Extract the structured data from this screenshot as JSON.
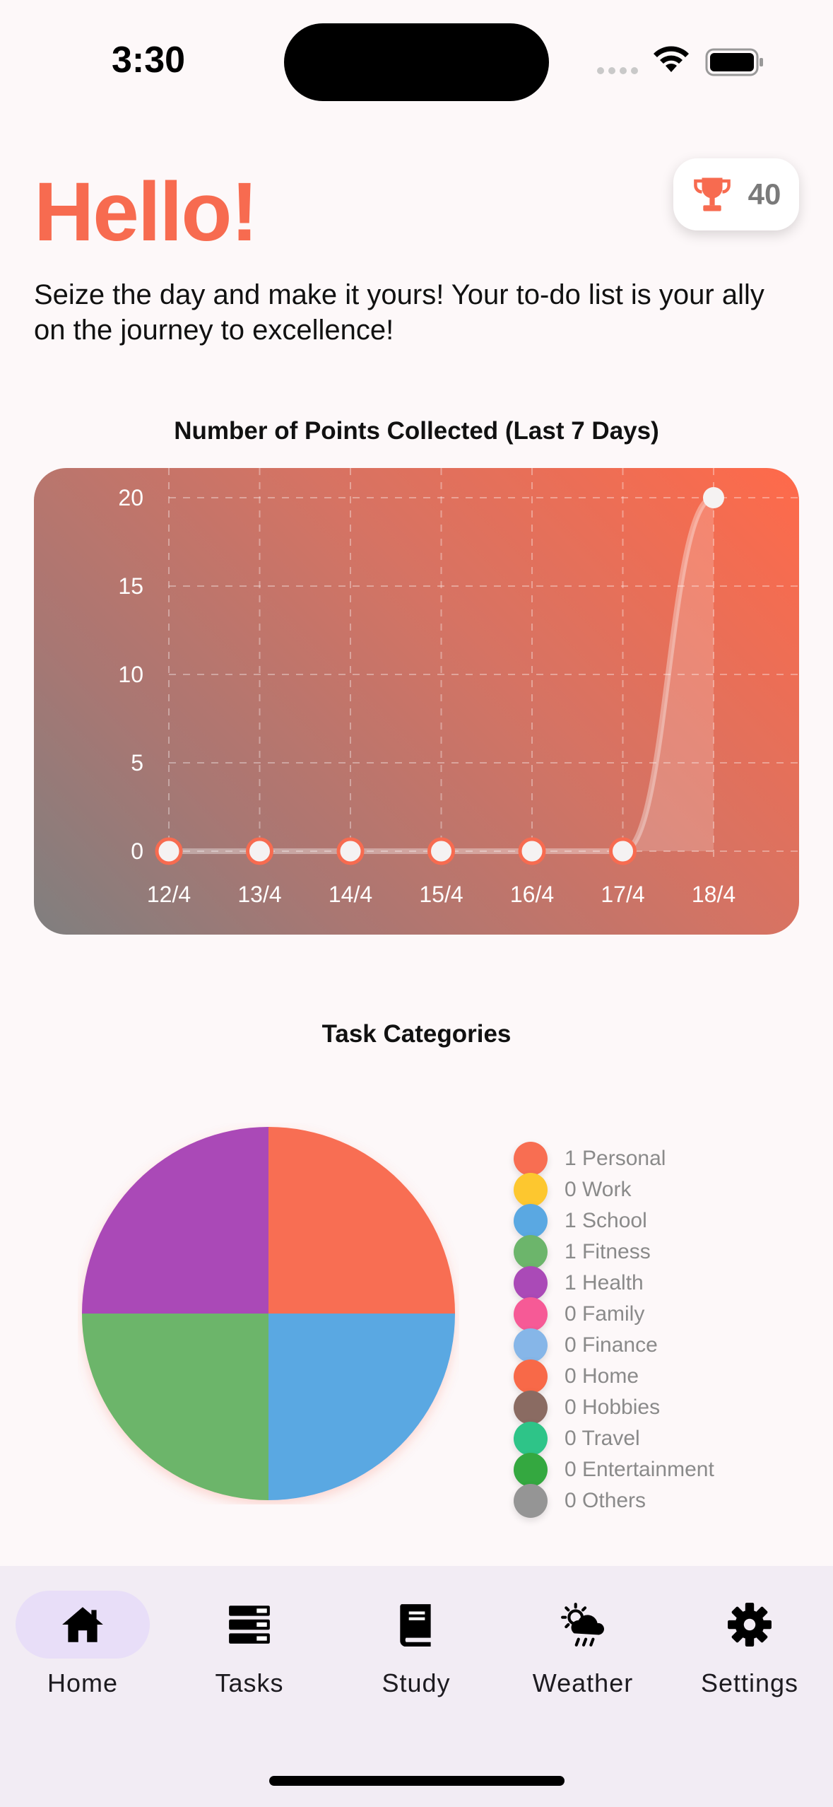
{
  "status_bar": {
    "time": "3:30",
    "icons": [
      "signal-dots-icon",
      "wifi-icon",
      "battery-icon"
    ]
  },
  "header": {
    "greeting": "Hello!",
    "points_badge": {
      "icon": "trophy-icon",
      "value": "40"
    },
    "subtitle": "Seize the day and make it yours! Your to-do list is your ally on the journey to excellence!"
  },
  "colors": {
    "accent": "#f76b50",
    "nav_active": "#e8def8",
    "nav_bg": "#f2ecf4"
  },
  "chart_data": [
    {
      "type": "line",
      "title": "Number of Points Collected (Last 7 Days)",
      "categories": [
        "12/4",
        "13/4",
        "14/4",
        "15/4",
        "16/4",
        "17/4",
        "18/4"
      ],
      "values": [
        0,
        0,
        0,
        0,
        0,
        0,
        20
      ],
      "yticks": [
        "0",
        "5",
        "10",
        "15",
        "20"
      ],
      "ylim": [
        0,
        20
      ],
      "grid": true
    },
    {
      "type": "pie",
      "title": "Task Categories",
      "series": [
        {
          "name": "Personal",
          "value": 1,
          "label": "1 Personal",
          "color": "#f86e52"
        },
        {
          "name": "Work",
          "value": 0,
          "label": "0 Work",
          "color": "#fdc72f"
        },
        {
          "name": "School",
          "value": 1,
          "label": "1 School",
          "color": "#5aa8e2"
        },
        {
          "name": "Fitness",
          "value": 1,
          "label": "1 Fitness",
          "color": "#6cb56b"
        },
        {
          "name": "Health",
          "value": 1,
          "label": "1 Health",
          "color": "#aa4ab7"
        },
        {
          "name": "Family",
          "value": 0,
          "label": "0 Family",
          "color": "#f65a96"
        },
        {
          "name": "Finance",
          "value": 0,
          "label": "0 Finance",
          "color": "#86b6e8"
        },
        {
          "name": "Home",
          "value": 0,
          "label": "0 Home",
          "color": "#f86948"
        },
        {
          "name": "Hobbies",
          "value": 0,
          "label": "0 Hobbies",
          "color": "#8a6b62"
        },
        {
          "name": "Travel",
          "value": 0,
          "label": "0 Travel",
          "color": "#2ec488"
        },
        {
          "name": "Entertainment",
          "value": 0,
          "label": "0 Entertainment",
          "color": "#34a840"
        },
        {
          "name": "Others",
          "value": 0,
          "label": "0 Others",
          "color": "#959595"
        }
      ],
      "legend": "right"
    }
  ],
  "bottom_nav": {
    "items": [
      {
        "label": "Home",
        "icon": "home-icon",
        "active": true
      },
      {
        "label": "Tasks",
        "icon": "tasks-icon",
        "active": false
      },
      {
        "label": "Study",
        "icon": "book-icon",
        "active": false
      },
      {
        "label": "Weather",
        "icon": "weather-icon",
        "active": false
      },
      {
        "label": "Settings",
        "icon": "gear-icon",
        "active": false
      }
    ]
  }
}
